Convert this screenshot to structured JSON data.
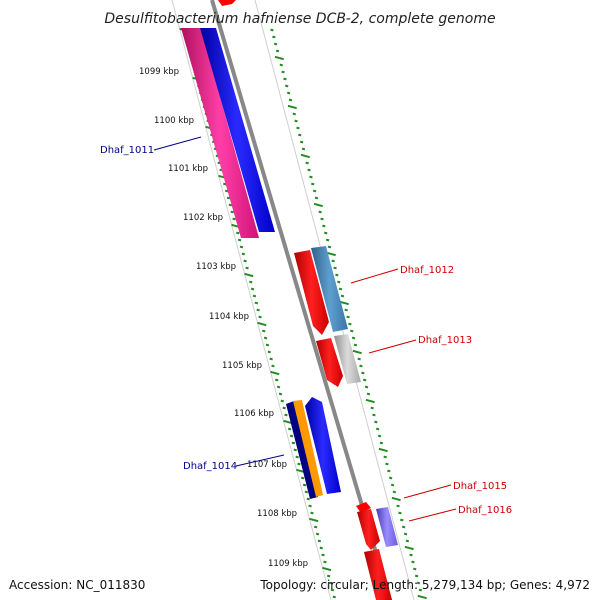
{
  "title": "Desulfitobacterium hafniense DCB-2, complete genome",
  "accession": "Accession: NC_011830",
  "topology": "Topology: circular; Length: 5,279,134 bp; Genes: 4,972",
  "ticks": [
    {
      "label": "1099 kbp"
    },
    {
      "label": "1100 kbp"
    },
    {
      "label": "1101 kbp"
    },
    {
      "label": "1102 kbp"
    },
    {
      "label": "1103 kbp"
    },
    {
      "label": "1104 kbp"
    },
    {
      "label": "1105 kbp"
    },
    {
      "label": "1106 kbp"
    },
    {
      "label": "1107 kbp"
    },
    {
      "label": "1108 kbp"
    },
    {
      "label": "1109 kbp"
    }
  ],
  "gene_labels": [
    {
      "text": "Dhaf_1011",
      "color": "#00008b"
    },
    {
      "text": "Dhaf_1012",
      "color": "#cc0000"
    },
    {
      "text": "Dhaf_1013",
      "color": "#cc0000"
    },
    {
      "text": "Dhaf_1014",
      "color": "#00008b"
    },
    {
      "text": "Dhaf_1015",
      "color": "#cc0000"
    },
    {
      "text": "Dhaf_1016",
      "color": "#cc0000"
    }
  ],
  "colors": {
    "backbone": "#888888",
    "ring_dots": "#228b22",
    "cds_red": "#ff0000",
    "cds_blue": "#0000ff",
    "cds_pink": "#ff1493",
    "cds_steelblue": "#4682b4",
    "cds_grey": "#b0b0b0",
    "cds_navy": "#000080",
    "cds_orange": "#ff9900",
    "cds_purple": "#7b68ee"
  }
}
